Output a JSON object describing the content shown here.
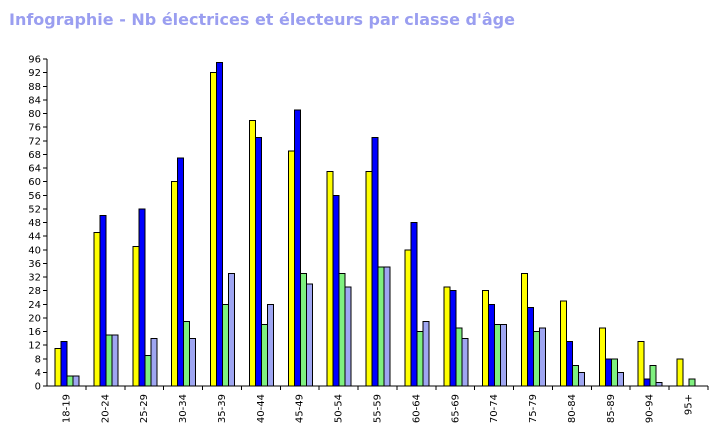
{
  "title": "Infographie - Nb électrices et électeurs par classe d'âge",
  "chart_data": {
    "type": "bar",
    "title": "Infographie - Nb électrices et électeurs par classe d'âge",
    "xlabel": "",
    "ylabel": "",
    "ylim": [
      0,
      96
    ],
    "y_ticks": [
      0,
      4,
      8,
      12,
      16,
      20,
      24,
      28,
      32,
      36,
      40,
      44,
      48,
      52,
      56,
      60,
      64,
      68,
      72,
      76,
      80,
      84,
      88,
      92,
      96
    ],
    "grid": false,
    "legend": "none",
    "categories": [
      "18-19",
      "20-24",
      "25-29",
      "30-34",
      "35-39",
      "40-44",
      "45-49",
      "50-54",
      "55-59",
      "60-64",
      "65-69",
      "70-74",
      "75-79",
      "80-84",
      "85-89",
      "90-94",
      "95+"
    ],
    "series": [
      {
        "color": "#ffff00",
        "values": [
          11,
          45,
          41,
          60,
          92,
          78,
          69,
          63,
          63,
          40,
          29,
          28,
          33,
          25,
          17,
          13,
          8
        ]
      },
      {
        "color": "#0000ff",
        "values": [
          13,
          50,
          52,
          67,
          95,
          73,
          81,
          56,
          73,
          48,
          28,
          24,
          23,
          13,
          8,
          2,
          0
        ]
      },
      {
        "color": "#7ff07f",
        "values": [
          3,
          15,
          9,
          19,
          24,
          18,
          33,
          33,
          35,
          16,
          17,
          18,
          16,
          6,
          8,
          6,
          2
        ]
      },
      {
        "color": "#9fa6f2",
        "values": [
          3,
          15,
          14,
          14,
          33,
          24,
          30,
          29,
          35,
          19,
          14,
          18,
          17,
          4,
          4,
          1,
          0
        ]
      }
    ]
  }
}
